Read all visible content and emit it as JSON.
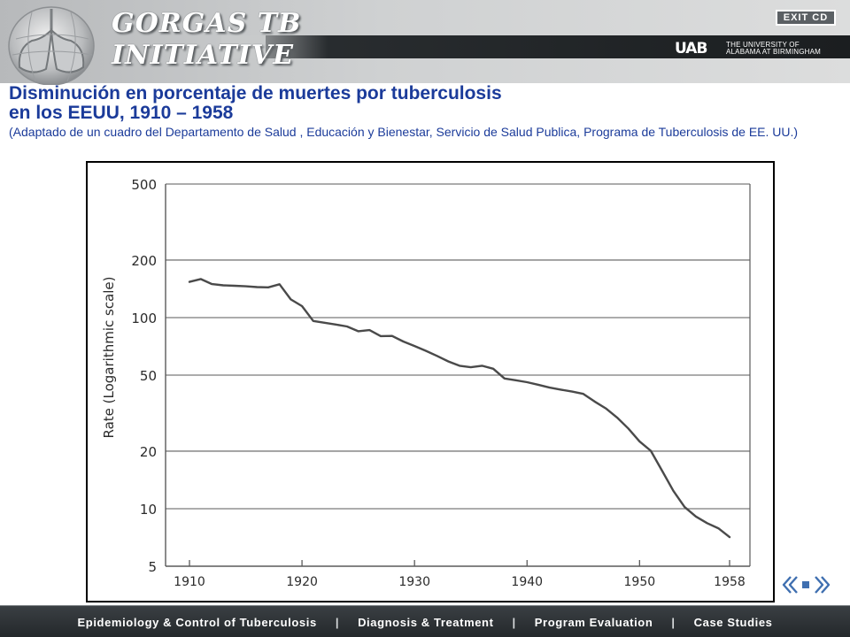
{
  "header": {
    "logo_line1": "GORGAS TB",
    "logo_line2": "INITIATIVE",
    "exit_label": "EXIT CD",
    "university_mark": "UAB",
    "university_line1": "THE UNIVERSITY OF",
    "university_line2": "ALABAMA AT BIRMINGHAM"
  },
  "slide": {
    "title_line1": "Disminución en porcentaje de muertes por tuberculosis",
    "title_line2": "en los EEUU, 1910 – 1958",
    "subtitle": "(Adaptado de un cuadro del  Departamento de Salud , Educación y Bienestar, Servicio de Salud Publica, Programa de Tuberculosis  de EE. UU.)"
  },
  "chart_data": {
    "type": "line",
    "title": "",
    "xlabel": "",
    "ylabel": "Rate (Logarithmic scale)",
    "yscale": "log",
    "xlim": [
      1910,
      1958
    ],
    "ylim": [
      5,
      500
    ],
    "x_ticks": [
      1910,
      1920,
      1930,
      1940,
      1950,
      1958
    ],
    "x_tick_labels": [
      "1910",
      "1920",
      "1930",
      "1940",
      "1950",
      "1958"
    ],
    "y_ticks": [
      5,
      10,
      20,
      50,
      100,
      200,
      500
    ],
    "y_tick_labels": [
      "5",
      "10",
      "20",
      "50",
      "100",
      "200",
      "500"
    ],
    "grid": true,
    "series": [
      {
        "name": "",
        "x": [
          1910,
          1911,
          1912,
          1913,
          1914,
          1915,
          1916,
          1917,
          1918,
          1919,
          1920,
          1921,
          1922,
          1923,
          1924,
          1925,
          1926,
          1927,
          1928,
          1929,
          1930,
          1931,
          1932,
          1933,
          1934,
          1935,
          1936,
          1937,
          1938,
          1939,
          1940,
          1941,
          1942,
          1943,
          1944,
          1945,
          1946,
          1947,
          1948,
          1949,
          1950,
          1951,
          1952,
          1953,
          1954,
          1955,
          1956,
          1957,
          1958
        ],
        "values": [
          153.8,
          159.1,
          149.7,
          147.6,
          146.8,
          145.8,
          144.4,
          144.0,
          149.5,
          124.5,
          114.8,
          96.0,
          94.0,
          92.0,
          89.9,
          84.8,
          86.0,
          80.0,
          80.2,
          75.0,
          71.0,
          67.0,
          63.0,
          59.0,
          56.0,
          55.0,
          56.0,
          54.0,
          48.0,
          47.0,
          45.9,
          44.5,
          43.0,
          42.0,
          41.0,
          39.9,
          36.4,
          33.5,
          30.0,
          26.3,
          22.5,
          20.1,
          15.8,
          12.4,
          10.2,
          9.1,
          8.4,
          7.9,
          7.1
        ]
      }
    ],
    "line_color": "#4a4a4a",
    "grid_color": "#7a7a7a"
  },
  "nav": {
    "prev_icon": "double-left-arrow-icon",
    "home_icon": "square-home-icon",
    "next_icon": "double-right-arrow-icon"
  },
  "footer": {
    "items": [
      "Epidemiology & Control of Tuberculosis",
      "Diagnosis & Treatment",
      "Program Evaluation",
      "Case Studies"
    ],
    "separator": "|"
  }
}
